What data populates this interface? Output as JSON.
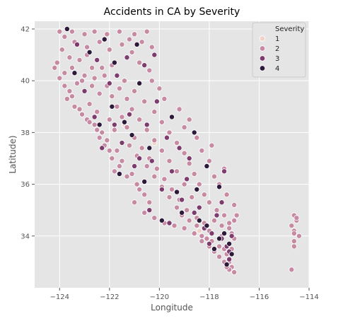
{
  "chart_data": {
    "type": "scatter",
    "title": "Accidents in CA by Severity",
    "xlabel": "Longitude",
    "ylabel": "Latitude)",
    "xlim": [
      -125,
      -114
    ],
    "ylim": [
      32,
      42.3
    ],
    "xticks": [
      -124,
      -122,
      -120,
      -118,
      -116,
      -114
    ],
    "yticks": [
      34,
      36,
      38,
      40,
      42
    ],
    "grid": true,
    "legend": {
      "title": "Severity",
      "placement": "top-right"
    },
    "series": [
      {
        "name": "1",
        "color": "#f0d2c8",
        "points": [
          [
            -120.2,
            37.6
          ],
          [
            -121.4,
            38.3
          ],
          [
            -118.4,
            34.2
          ]
        ]
      },
      {
        "name": "2",
        "color": "#c78aa3",
        "points": [
          [
            -124.0,
            41.9
          ],
          [
            -123.8,
            41.7
          ],
          [
            -123.5,
            41.9
          ],
          [
            -123.0,
            41.8
          ],
          [
            -122.6,
            41.9
          ],
          [
            -122.1,
            41.8
          ],
          [
            -121.6,
            41.9
          ],
          [
            -121.0,
            41.8
          ],
          [
            -120.5,
            41.9
          ],
          [
            -120.3,
            41.3
          ],
          [
            -123.9,
            41.2
          ],
          [
            -123.6,
            40.9
          ],
          [
            -124.1,
            40.7
          ],
          [
            -124.2,
            40.5
          ],
          [
            -123.8,
            40.3
          ],
          [
            -124.0,
            40.1
          ],
          [
            -123.5,
            40.5
          ],
          [
            -123.2,
            40.8
          ],
          [
            -122.9,
            41.3
          ],
          [
            -122.4,
            41.5
          ],
          [
            -122.0,
            41.2
          ],
          [
            -121.5,
            41.4
          ],
          [
            -121.1,
            41.1
          ],
          [
            -120.8,
            40.7
          ],
          [
            -120.4,
            40.4
          ],
          [
            -121.9,
            40.6
          ],
          [
            -122.3,
            40.5
          ],
          [
            -122.6,
            40.1
          ],
          [
            -123.0,
            40.2
          ],
          [
            -123.3,
            39.9
          ],
          [
            -123.6,
            39.6
          ],
          [
            -123.7,
            39.3
          ],
          [
            -123.4,
            39.0
          ],
          [
            -123.1,
            38.7
          ],
          [
            -122.9,
            38.5
          ],
          [
            -122.6,
            38.3
          ],
          [
            -122.3,
            38.0
          ],
          [
            -122.4,
            37.8
          ],
          [
            -122.2,
            37.5
          ],
          [
            -122.0,
            37.3
          ],
          [
            -121.9,
            37.0
          ],
          [
            -121.6,
            36.7
          ],
          [
            -121.8,
            36.5
          ],
          [
            -121.3,
            36.3
          ],
          [
            -120.9,
            36.0
          ],
          [
            -120.6,
            35.6
          ],
          [
            -120.4,
            35.3
          ],
          [
            -120.6,
            34.9
          ],
          [
            -120.2,
            34.7
          ],
          [
            -119.8,
            34.5
          ],
          [
            -119.4,
            34.4
          ],
          [
            -119.0,
            34.3
          ],
          [
            -118.6,
            34.1
          ],
          [
            -118.3,
            34.0
          ],
          [
            -118.1,
            33.9
          ],
          [
            -117.9,
            33.8
          ],
          [
            -117.6,
            33.6
          ],
          [
            -117.3,
            33.3
          ],
          [
            -117.2,
            33.0
          ],
          [
            -117.1,
            32.8
          ],
          [
            -117.0,
            32.6
          ],
          [
            -117.2,
            32.7
          ],
          [
            -117.4,
            33.5
          ],
          [
            -117.5,
            34.0
          ],
          [
            -117.2,
            34.3
          ],
          [
            -117.0,
            34.6
          ],
          [
            -117.8,
            34.6
          ],
          [
            -118.2,
            34.5
          ],
          [
            -118.5,
            34.7
          ],
          [
            -118.9,
            35.0
          ],
          [
            -119.2,
            35.4
          ],
          [
            -119.5,
            35.8
          ],
          [
            -119.8,
            36.2
          ],
          [
            -120.1,
            36.6
          ],
          [
            -120.4,
            37.0
          ],
          [
            -120.7,
            37.4
          ],
          [
            -121.0,
            37.8
          ],
          [
            -121.3,
            38.2
          ],
          [
            -121.5,
            38.6
          ],
          [
            -121.7,
            39.0
          ],
          [
            -121.9,
            39.4
          ],
          [
            -122.1,
            39.8
          ],
          [
            -122.2,
            40.2
          ],
          [
            -121.4,
            40.0
          ],
          [
            -121.0,
            39.6
          ],
          [
            -120.6,
            39.2
          ],
          [
            -120.2,
            38.8
          ],
          [
            -119.9,
            38.4
          ],
          [
            -119.6,
            38.0
          ],
          [
            -119.3,
            37.6
          ],
          [
            -119.0,
            37.2
          ],
          [
            -118.8,
            36.8
          ],
          [
            -118.6,
            36.4
          ],
          [
            -118.4,
            36.0
          ],
          [
            -118.2,
            35.6
          ],
          [
            -118.0,
            35.3
          ],
          [
            -117.7,
            35.0
          ],
          [
            -117.4,
            34.8
          ],
          [
            -117.2,
            34.5
          ],
          [
            -118.8,
            38.5
          ],
          [
            -119.2,
            38.9
          ],
          [
            -119.8,
            39.3
          ],
          [
            -120.0,
            39.7
          ],
          [
            -120.3,
            40.0
          ],
          [
            -122.8,
            39.1
          ],
          [
            -122.5,
            38.8
          ],
          [
            -122.0,
            38.5
          ],
          [
            -121.8,
            38.1
          ],
          [
            -121.2,
            37.5
          ],
          [
            -120.9,
            37.1
          ],
          [
            -120.5,
            36.7
          ],
          [
            -120.2,
            36.3
          ],
          [
            -119.9,
            35.9
          ],
          [
            -119.6,
            35.5
          ],
          [
            -119.3,
            35.1
          ],
          [
            -119.1,
            34.8
          ],
          [
            -118.8,
            34.6
          ],
          [
            -118.5,
            34.4
          ],
          [
            -118.3,
            33.8
          ],
          [
            -118.0,
            33.6
          ],
          [
            -117.8,
            33.4
          ],
          [
            -117.6,
            33.2
          ],
          [
            -117.4,
            33.0
          ],
          [
            -117.3,
            32.8
          ],
          [
            -117.1,
            33.5
          ],
          [
            -117.0,
            33.9
          ],
          [
            -117.1,
            34.1
          ],
          [
            -117.5,
            34.4
          ],
          [
            -118.0,
            34.2
          ],
          [
            -118.7,
            35.5
          ],
          [
            -119.0,
            36.0
          ],
          [
            -119.3,
            36.5
          ],
          [
            -119.6,
            36.9
          ],
          [
            -119.9,
            37.3
          ],
          [
            -120.2,
            37.7
          ],
          [
            -120.5,
            38.1
          ],
          [
            -120.8,
            38.5
          ],
          [
            -121.1,
            38.9
          ],
          [
            -121.3,
            39.3
          ],
          [
            -121.6,
            39.7
          ],
          [
            -122.4,
            39.5
          ],
          [
            -122.7,
            39.8
          ],
          [
            -123.1,
            40.0
          ],
          [
            -120.7,
            41.5
          ],
          [
            -121.2,
            41.6
          ],
          [
            -122.9,
            41.0
          ],
          [
            -123.4,
            41.5
          ],
          [
            -122.7,
            40.5
          ],
          [
            -117.4,
            36.6
          ],
          [
            -117.8,
            36.3
          ],
          [
            -118.0,
            36.9
          ],
          [
            -118.3,
            37.3
          ],
          [
            -118.5,
            37.8
          ],
          [
            -119.0,
            38.2
          ],
          [
            -117.9,
            37.5
          ],
          [
            -117.6,
            36.0
          ],
          [
            -117.3,
            35.6
          ],
          [
            -117.0,
            35.2
          ],
          [
            -116.9,
            34.8
          ],
          [
            -121.0,
            35.3
          ],
          [
            -120.8,
            35.8
          ],
          [
            -121.1,
            36.4
          ],
          [
            -121.5,
            36.9
          ],
          [
            -121.7,
            37.3
          ],
          [
            -122.1,
            37.7
          ],
          [
            -122.5,
            38.1
          ],
          [
            -122.8,
            38.4
          ],
          [
            -123.2,
            38.9
          ],
          [
            -123.5,
            39.4
          ],
          [
            -123.8,
            39.8
          ],
          [
            -114.6,
            34.8
          ],
          [
            -114.5,
            34.6
          ],
          [
            -114.7,
            34.4
          ],
          [
            -114.6,
            34.2
          ],
          [
            -114.4,
            34.0
          ],
          [
            -114.6,
            33.8
          ],
          [
            -114.6,
            33.6
          ],
          [
            -114.7,
            32.7
          ],
          [
            -114.5,
            34.7
          ],
          [
            -114.6,
            34.1
          ]
        ]
      },
      {
        "name": "3",
        "color": "#7d3c6e",
        "points": [
          [
            -123.3,
            41.4
          ],
          [
            -122.5,
            40.8
          ],
          [
            -121.3,
            40.9
          ],
          [
            -120.6,
            40.6
          ],
          [
            -122.0,
            39.9
          ],
          [
            -121.2,
            38.7
          ],
          [
            -120.5,
            38.3
          ],
          [
            -119.7,
            37.8
          ],
          [
            -121.5,
            37.6
          ],
          [
            -120.8,
            37.0
          ],
          [
            -119.5,
            36.5
          ],
          [
            -118.9,
            36.2
          ],
          [
            -119.9,
            35.8
          ],
          [
            -119.1,
            35.4
          ],
          [
            -118.6,
            34.9
          ],
          [
            -118.2,
            34.3
          ],
          [
            -117.9,
            34.1
          ],
          [
            -117.5,
            33.9
          ],
          [
            -117.3,
            33.6
          ],
          [
            -117.2,
            33.1
          ],
          [
            -117.7,
            34.8
          ],
          [
            -118.4,
            35.1
          ],
          [
            -117.5,
            35.3
          ],
          [
            -120.1,
            39.2
          ],
          [
            -122.6,
            38.6
          ],
          [
            -121.8,
            38.3
          ],
          [
            -120.3,
            36.9
          ],
          [
            -119.2,
            37.4
          ],
          [
            -118.8,
            37.0
          ],
          [
            -117.1,
            34.0
          ],
          [
            -117.2,
            33.4
          ],
          [
            -118.0,
            33.7
          ],
          [
            -119.6,
            34.5
          ],
          [
            -120.4,
            35.0
          ],
          [
            -121.0,
            36.7
          ],
          [
            -122.3,
            37.4
          ],
          [
            -123.0,
            39.6
          ],
          [
            -121.7,
            40.2
          ],
          [
            -120.2,
            41.0
          ],
          [
            -117.4,
            36.5
          ]
        ]
      },
      {
        "name": "4",
        "color": "#2d1a3a",
        "points": [
          [
            -123.7,
            42.0
          ],
          [
            -122.8,
            41.1
          ],
          [
            -121.8,
            40.7
          ],
          [
            -120.9,
            41.4
          ],
          [
            -121.9,
            39.0
          ],
          [
            -121.4,
            38.4
          ],
          [
            -120.4,
            37.4
          ],
          [
            -119.5,
            38.6
          ],
          [
            -118.6,
            38.0
          ],
          [
            -120.6,
            36.1
          ],
          [
            -119.3,
            35.7
          ],
          [
            -118.4,
            34.6
          ],
          [
            -117.4,
            34.1
          ],
          [
            -117.2,
            33.7
          ],
          [
            -117.6,
            33.9
          ],
          [
            -118.1,
            34.4
          ],
          [
            -117.3,
            32.9
          ],
          [
            -119.9,
            34.6
          ],
          [
            -121.6,
            36.4
          ],
          [
            -122.4,
            38.3
          ],
          [
            -123.4,
            40.3
          ],
          [
            -122.2,
            41.6
          ],
          [
            -118.1,
            36.7
          ],
          [
            -117.6,
            35.9
          ],
          [
            -119.1,
            34.9
          ],
          [
            -117.8,
            33.5
          ],
          [
            -120.8,
            39.9
          ],
          [
            -121.1,
            37.9
          ],
          [
            -117.1,
            33.3
          ],
          [
            -118.5,
            35.8
          ]
        ]
      }
    ]
  }
}
